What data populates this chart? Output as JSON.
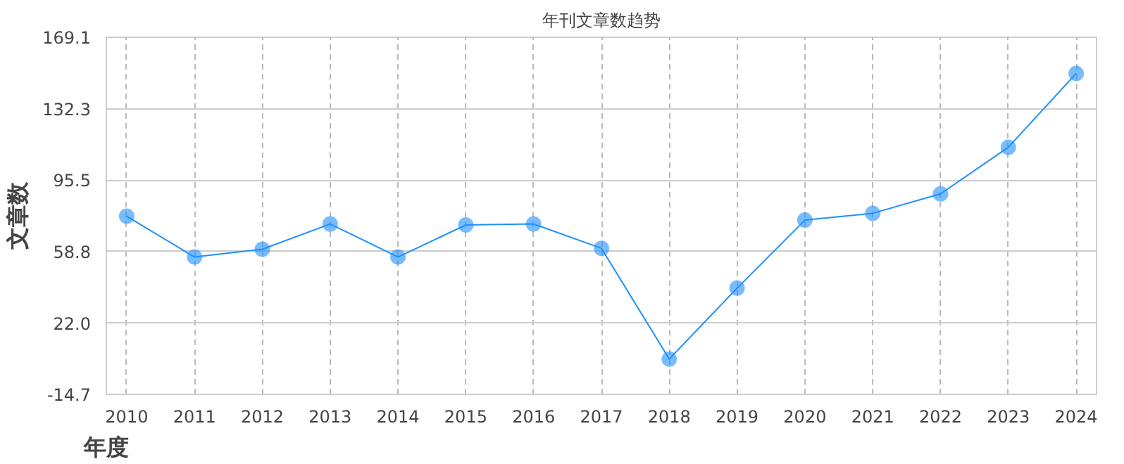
{
  "chart_data": {
    "type": "line",
    "title": "年刊文章数趋势",
    "xlabel": "年度",
    "ylabel": "文章数",
    "categories": [
      "2010",
      "2011",
      "2012",
      "2013",
      "2014",
      "2015",
      "2016",
      "2017",
      "2018",
      "2019",
      "2020",
      "2021",
      "2022",
      "2023",
      "2024"
    ],
    "series": [
      {
        "color": "#1e90ff",
        "values": [
          77,
          56,
          60,
          73,
          56,
          72.5,
          73,
          60.5,
          3.5,
          40,
          75,
          78.5,
          88.5,
          112.5,
          150.5
        ]
      }
    ],
    "ylim": [
      -14.7,
      169.1
    ],
    "yticks": [
      {
        "value": -14.7,
        "label": "-14.7"
      },
      {
        "value": 22.0,
        "label": "22.0"
      },
      {
        "value": 58.8,
        "label": "58.8"
      },
      {
        "value": 95.5,
        "label": "95.5"
      },
      {
        "value": 132.3,
        "label": "132.3"
      },
      {
        "value": 169.1,
        "label": "169.1"
      }
    ],
    "grid": true,
    "marker": "circle",
    "line_style": "solid"
  }
}
